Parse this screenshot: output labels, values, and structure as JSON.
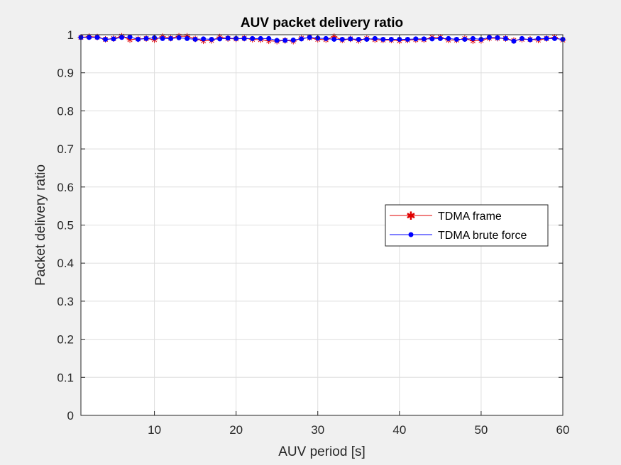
{
  "chart_data": {
    "type": "line",
    "title": "AUV packet delivery ratio",
    "xlabel": "AUV period [s]",
    "ylabel": "Packet delivery ratio",
    "xlim": [
      1,
      60
    ],
    "ylim": [
      0,
      1
    ],
    "grid": true,
    "legend_position": "right",
    "xticks": [
      10,
      20,
      30,
      40,
      50,
      60
    ],
    "yticks": [
      0,
      0.1,
      0.2,
      0.3,
      0.4,
      0.5,
      0.6,
      0.7,
      0.8,
      0.9,
      1
    ],
    "x": [
      1,
      2,
      3,
      4,
      5,
      6,
      7,
      8,
      9,
      10,
      11,
      12,
      13,
      14,
      15,
      16,
      17,
      18,
      19,
      20,
      21,
      22,
      23,
      24,
      25,
      26,
      27,
      28,
      29,
      30,
      31,
      32,
      33,
      34,
      35,
      36,
      37,
      38,
      39,
      40,
      41,
      42,
      43,
      44,
      45,
      46,
      47,
      48,
      49,
      50,
      51,
      52,
      53,
      54,
      55,
      56,
      57,
      58,
      59,
      60
    ],
    "series": [
      {
        "name": "TDMA frame",
        "color": "#e00000",
        "marker": "asterisk",
        "values": [
          0.993,
          0.995,
          0.994,
          0.988,
          0.99,
          0.996,
          0.987,
          0.989,
          0.99,
          0.987,
          0.995,
          0.991,
          0.996,
          0.996,
          0.989,
          0.984,
          0.985,
          0.994,
          0.99,
          0.989,
          0.991,
          0.988,
          0.987,
          0.984,
          0.983,
          0.985,
          0.983,
          0.991,
          0.992,
          0.988,
          0.987,
          0.995,
          0.986,
          0.989,
          0.985,
          0.99,
          0.987,
          0.986,
          0.986,
          0.984,
          0.986,
          0.987,
          0.987,
          0.993,
          0.993,
          0.986,
          0.986,
          0.99,
          0.984,
          0.985,
          0.991,
          0.991,
          0.99,
          0.985,
          0.988,
          0.988,
          0.986,
          0.99,
          0.993,
          0.986
        ]
      },
      {
        "name": "TDMA brute force",
        "color": "#0000ff",
        "marker": "dot",
        "values": [
          0.993,
          0.993,
          0.993,
          0.988,
          0.989,
          0.993,
          0.994,
          0.988,
          0.99,
          0.992,
          0.99,
          0.99,
          0.992,
          0.99,
          0.988,
          0.989,
          0.988,
          0.989,
          0.991,
          0.99,
          0.99,
          0.99,
          0.99,
          0.99,
          0.985,
          0.985,
          0.986,
          0.989,
          0.993,
          0.991,
          0.99,
          0.988,
          0.988,
          0.989,
          0.988,
          0.988,
          0.99,
          0.988,
          0.988,
          0.988,
          0.988,
          0.989,
          0.989,
          0.989,
          0.99,
          0.99,
          0.988,
          0.988,
          0.99,
          0.988,
          0.993,
          0.992,
          0.99,
          0.983,
          0.99,
          0.987,
          0.99,
          0.99,
          0.99,
          0.988
        ]
      }
    ]
  }
}
